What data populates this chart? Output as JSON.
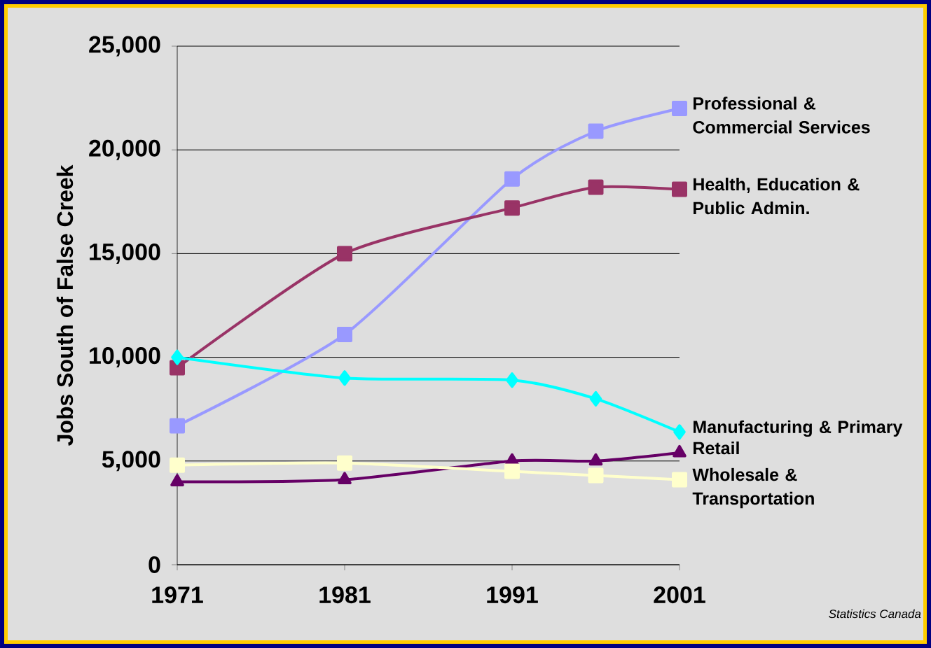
{
  "chart_data": {
    "type": "line",
    "ylabel": "Jobs South of False Creek",
    "x": [
      1971,
      1981,
      1991,
      1996,
      2001
    ],
    "xlim": [
      1971,
      2001
    ],
    "xticks": [
      1971,
      1981,
      1991,
      2001
    ],
    "ylim": [
      0,
      25000
    ],
    "yticks": [
      0,
      {
        "value": 5000,
        "label": "5,000"
      },
      {
        "value": 10000,
        "label": "10,000"
      },
      {
        "value": 15000,
        "label": "15,000"
      },
      {
        "value": 20000,
        "label": "20,000"
      },
      {
        "value": 25000,
        "label": "25,000"
      }
    ],
    "grid": "y",
    "series": [
      {
        "name": "Professional & Commercial Services",
        "color": "#9999ff",
        "marker": "square",
        "values": [
          6700,
          11100,
          18600,
          20900,
          22000
        ]
      },
      {
        "name": "Health, Education & Public Admin.",
        "color": "#993366",
        "marker": "square",
        "values": [
          9500,
          15000,
          17200,
          18200,
          18100
        ]
      },
      {
        "name": "Manufacturing & Primary",
        "color": "#00ffff",
        "marker": "diamond",
        "values": [
          10000,
          9000,
          8900,
          8000,
          6400
        ]
      },
      {
        "name": "Retail",
        "color": "#660066",
        "marker": "triangle",
        "values": [
          4000,
          4100,
          5000,
          5000,
          5400
        ]
      },
      {
        "name": "Wholesale & Transportation",
        "color": "#ffffcc",
        "marker": "square",
        "values": [
          4800,
          4900,
          4500,
          4300,
          4100
        ]
      }
    ],
    "annotations": [
      "Statistics Canada"
    ]
  }
}
